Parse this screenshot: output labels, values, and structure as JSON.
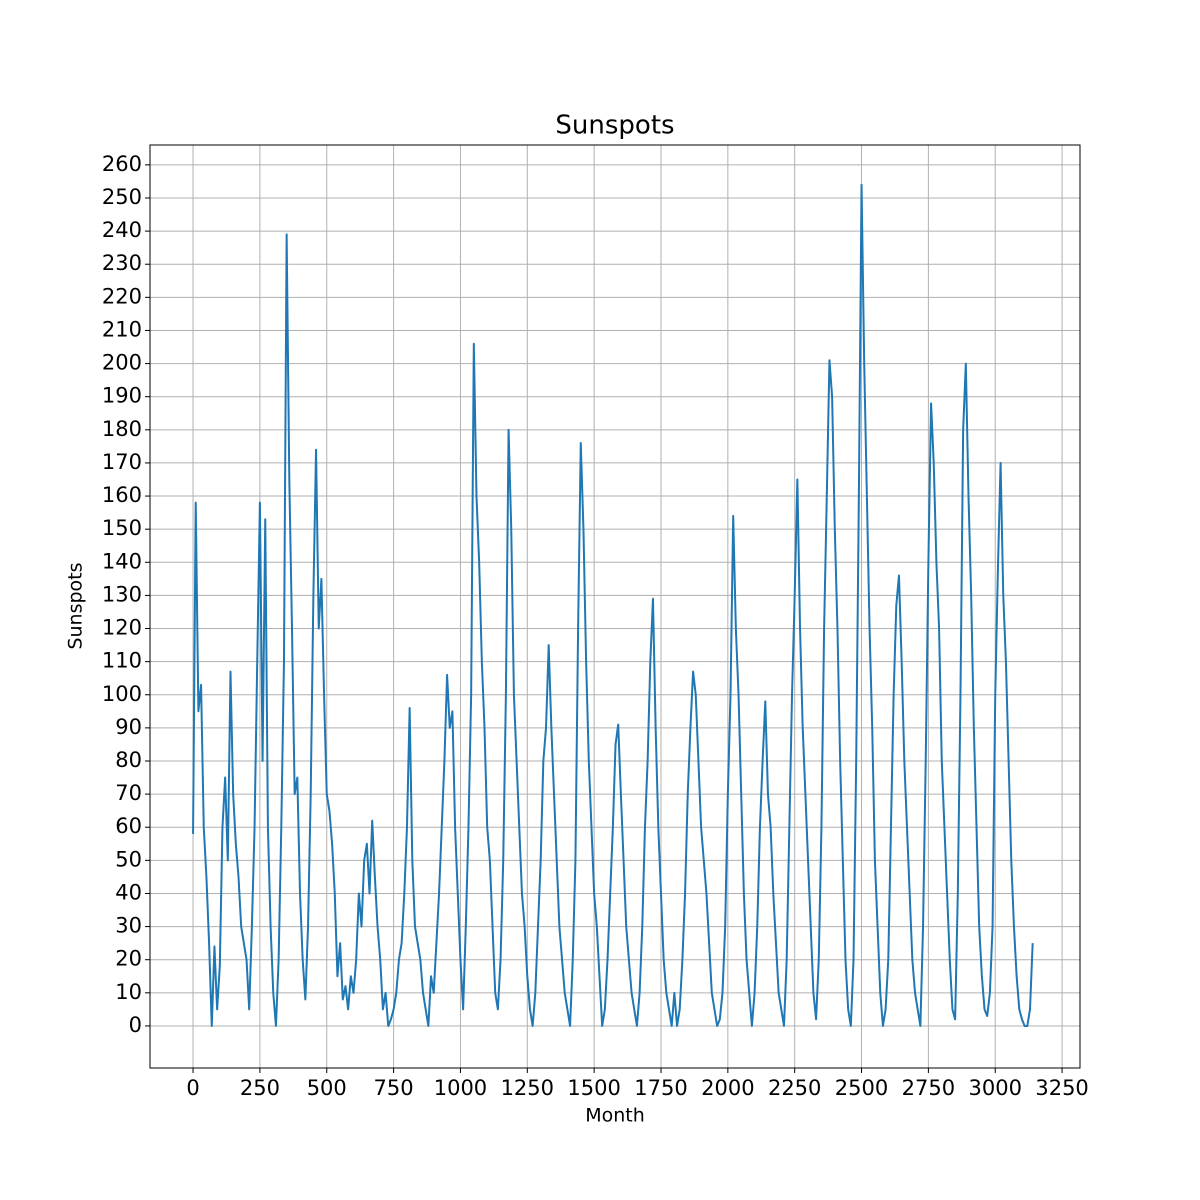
{
  "chart_data": {
    "type": "line",
    "title": "Sunspots",
    "x_label": "Month",
    "y_label": "Sunspots",
    "color": "#1f77b4",
    "grid": true,
    "xlim": [
      -161,
      3317
    ],
    "ylim": [
      -12.7,
      266
    ],
    "xticks": [
      0,
      250,
      500,
      750,
      1000,
      1250,
      1500,
      1750,
      2000,
      2250,
      2500,
      2750,
      3000,
      3250
    ],
    "yticks": [
      0,
      10,
      20,
      30,
      40,
      50,
      60,
      70,
      80,
      90,
      100,
      110,
      120,
      130,
      140,
      150,
      160,
      170,
      180,
      190,
      200,
      210,
      220,
      230,
      240,
      250,
      260
    ],
    "x": [
      0,
      10,
      20,
      30,
      40,
      50,
      60,
      70,
      80,
      90,
      100,
      110,
      120,
      130,
      140,
      150,
      160,
      170,
      180,
      190,
      200,
      210,
      220,
      230,
      240,
      250,
      260,
      270,
      280,
      290,
      300,
      310,
      320,
      330,
      340,
      350,
      360,
      370,
      380,
      390,
      400,
      410,
      420,
      430,
      440,
      450,
      460,
      470,
      480,
      490,
      500,
      510,
      520,
      530,
      540,
      550,
      560,
      570,
      580,
      590,
      600,
      610,
      620,
      630,
      640,
      650,
      660,
      670,
      680,
      690,
      700,
      710,
      720,
      730,
      740,
      750,
      760,
      770,
      780,
      790,
      800,
      810,
      820,
      830,
      840,
      850,
      860,
      870,
      880,
      890,
      900,
      910,
      920,
      930,
      940,
      950,
      960,
      970,
      980,
      990,
      1000,
      1010,
      1020,
      1030,
      1040,
      1050,
      1060,
      1070,
      1080,
      1090,
      1100,
      1110,
      1120,
      1130,
      1140,
      1150,
      1160,
      1170,
      1180,
      1190,
      1200,
      1210,
      1220,
      1230,
      1240,
      1250,
      1260,
      1270,
      1280,
      1290,
      1300,
      1310,
      1320,
      1330,
      1340,
      1350,
      1360,
      1370,
      1380,
      1390,
      1400,
      1410,
      1420,
      1430,
      1440,
      1450,
      1460,
      1470,
      1480,
      1490,
      1500,
      1510,
      1520,
      1530,
      1540,
      1550,
      1560,
      1570,
      1580,
      1590,
      1600,
      1610,
      1620,
      1630,
      1640,
      1650,
      1660,
      1670,
      1680,
      1690,
      1700,
      1710,
      1720,
      1730,
      1740,
      1750,
      1760,
      1770,
      1780,
      1790,
      1800,
      1810,
      1820,
      1830,
      1840,
      1850,
      1860,
      1870,
      1880,
      1890,
      1900,
      1910,
      1920,
      1930,
      1940,
      1950,
      1960,
      1970,
      1980,
      1990,
      2000,
      2010,
      2020,
      2030,
      2040,
      2050,
      2060,
      2070,
      2080,
      2090,
      2100,
      2110,
      2120,
      2130,
      2140,
      2150,
      2160,
      2170,
      2180,
      2190,
      2200,
      2210,
      2220,
      2230,
      2240,
      2250,
      2260,
      2270,
      2280,
      2290,
      2300,
      2310,
      2320,
      2330,
      2340,
      2350,
      2360,
      2370,
      2380,
      2390,
      2400,
      2410,
      2420,
      2430,
      2440,
      2450,
      2460,
      2470,
      2480,
      2490,
      2500,
      2510,
      2520,
      2530,
      2540,
      2550,
      2560,
      2570,
      2580,
      2590,
      2600,
      2610,
      2620,
      2630,
      2640,
      2650,
      2660,
      2670,
      2680,
      2690,
      2700,
      2710,
      2720,
      2730,
      2740,
      2750,
      2760,
      2770,
      2780,
      2790,
      2800,
      2810,
      2820,
      2830,
      2840,
      2850,
      2860,
      2870,
      2880,
      2890,
      2900,
      2910,
      2920,
      2930,
      2940,
      2950,
      2960,
      2970,
      2980,
      2990,
      3000,
      3010,
      3020,
      3030,
      3040,
      3050,
      3060,
      3070,
      3080,
      3090,
      3100,
      3110,
      3120,
      3130,
      3140
    ],
    "values": [
      58,
      158,
      95,
      103,
      60,
      45,
      25,
      0,
      24,
      5,
      18,
      60,
      75,
      50,
      107,
      70,
      55,
      45,
      30,
      25,
      20,
      5,
      30,
      60,
      110,
      158,
      80,
      153,
      60,
      30,
      10,
      0,
      20,
      60,
      110,
      239,
      165,
      120,
      70,
      75,
      40,
      20,
      8,
      30,
      70,
      130,
      174,
      120,
      135,
      100,
      70,
      65,
      55,
      40,
      15,
      25,
      8,
      12,
      5,
      15,
      10,
      20,
      40,
      30,
      50,
      55,
      40,
      62,
      45,
      30,
      20,
      5,
      10,
      0,
      2,
      5,
      10,
      20,
      25,
      40,
      60,
      96,
      50,
      30,
      25,
      20,
      10,
      5,
      0,
      15,
      10,
      25,
      40,
      60,
      80,
      106,
      90,
      95,
      60,
      40,
      20,
      5,
      30,
      60,
      100,
      206,
      160,
      140,
      110,
      90,
      60,
      50,
      30,
      10,
      5,
      20,
      50,
      100,
      180,
      150,
      100,
      80,
      60,
      40,
      30,
      15,
      5,
      0,
      10,
      30,
      50,
      80,
      90,
      115,
      90,
      70,
      50,
      30,
      20,
      10,
      5,
      0,
      20,
      50,
      120,
      176,
      150,
      110,
      80,
      60,
      40,
      30,
      15,
      0,
      5,
      20,
      40,
      60,
      85,
      91,
      70,
      50,
      30,
      20,
      10,
      5,
      0,
      10,
      30,
      60,
      80,
      110,
      129,
      90,
      60,
      40,
      20,
      10,
      5,
      0,
      10,
      0,
      5,
      20,
      40,
      70,
      90,
      107,
      100,
      80,
      60,
      50,
      40,
      25,
      10,
      5,
      0,
      2,
      10,
      30,
      70,
      100,
      154,
      120,
      100,
      70,
      40,
      20,
      10,
      0,
      10,
      30,
      60,
      80,
      98,
      70,
      60,
      40,
      25,
      10,
      5,
      0,
      20,
      60,
      100,
      130,
      165,
      120,
      90,
      70,
      50,
      30,
      10,
      2,
      20,
      60,
      120,
      160,
      201,
      190,
      150,
      120,
      80,
      50,
      20,
      5,
      0,
      20,
      80,
      160,
      254,
      200,
      160,
      120,
      90,
      50,
      30,
      10,
      0,
      5,
      20,
      60,
      100,
      127,
      136,
      110,
      80,
      60,
      40,
      20,
      10,
      5,
      0,
      30,
      80,
      140,
      188,
      170,
      140,
      120,
      80,
      60,
      40,
      20,
      5,
      2,
      40,
      100,
      180,
      200,
      160,
      130,
      90,
      60,
      30,
      15,
      5,
      3,
      10,
      30,
      100,
      138,
      170,
      130,
      110,
      80,
      50,
      30,
      15,
      5,
      2,
      0,
      0,
      5,
      25
    ]
  }
}
